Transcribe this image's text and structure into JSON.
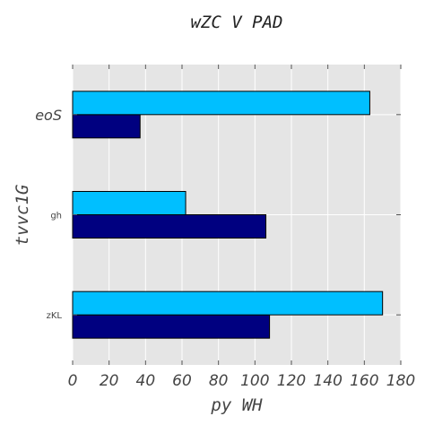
{
  "chart_data": {
    "type": "bar",
    "orientation": "horizontal",
    "title": "wZC V PAD",
    "xlabel": "py WH",
    "ylabel": "tvvc1G",
    "categories": [
      "zKL",
      "gh",
      "eoS"
    ],
    "series": [
      {
        "values": [
          108,
          106,
          37
        ],
        "color": "#000080"
      },
      {
        "values": [
          170,
          62,
          163
        ],
        "color": "#00bfff"
      }
    ],
    "xlim": [
      0,
      180
    ],
    "xticks": [
      0,
      20,
      40,
      60,
      80,
      100,
      120,
      140,
      160,
      180
    ],
    "grid": true,
    "background": "#e5e5e5"
  }
}
